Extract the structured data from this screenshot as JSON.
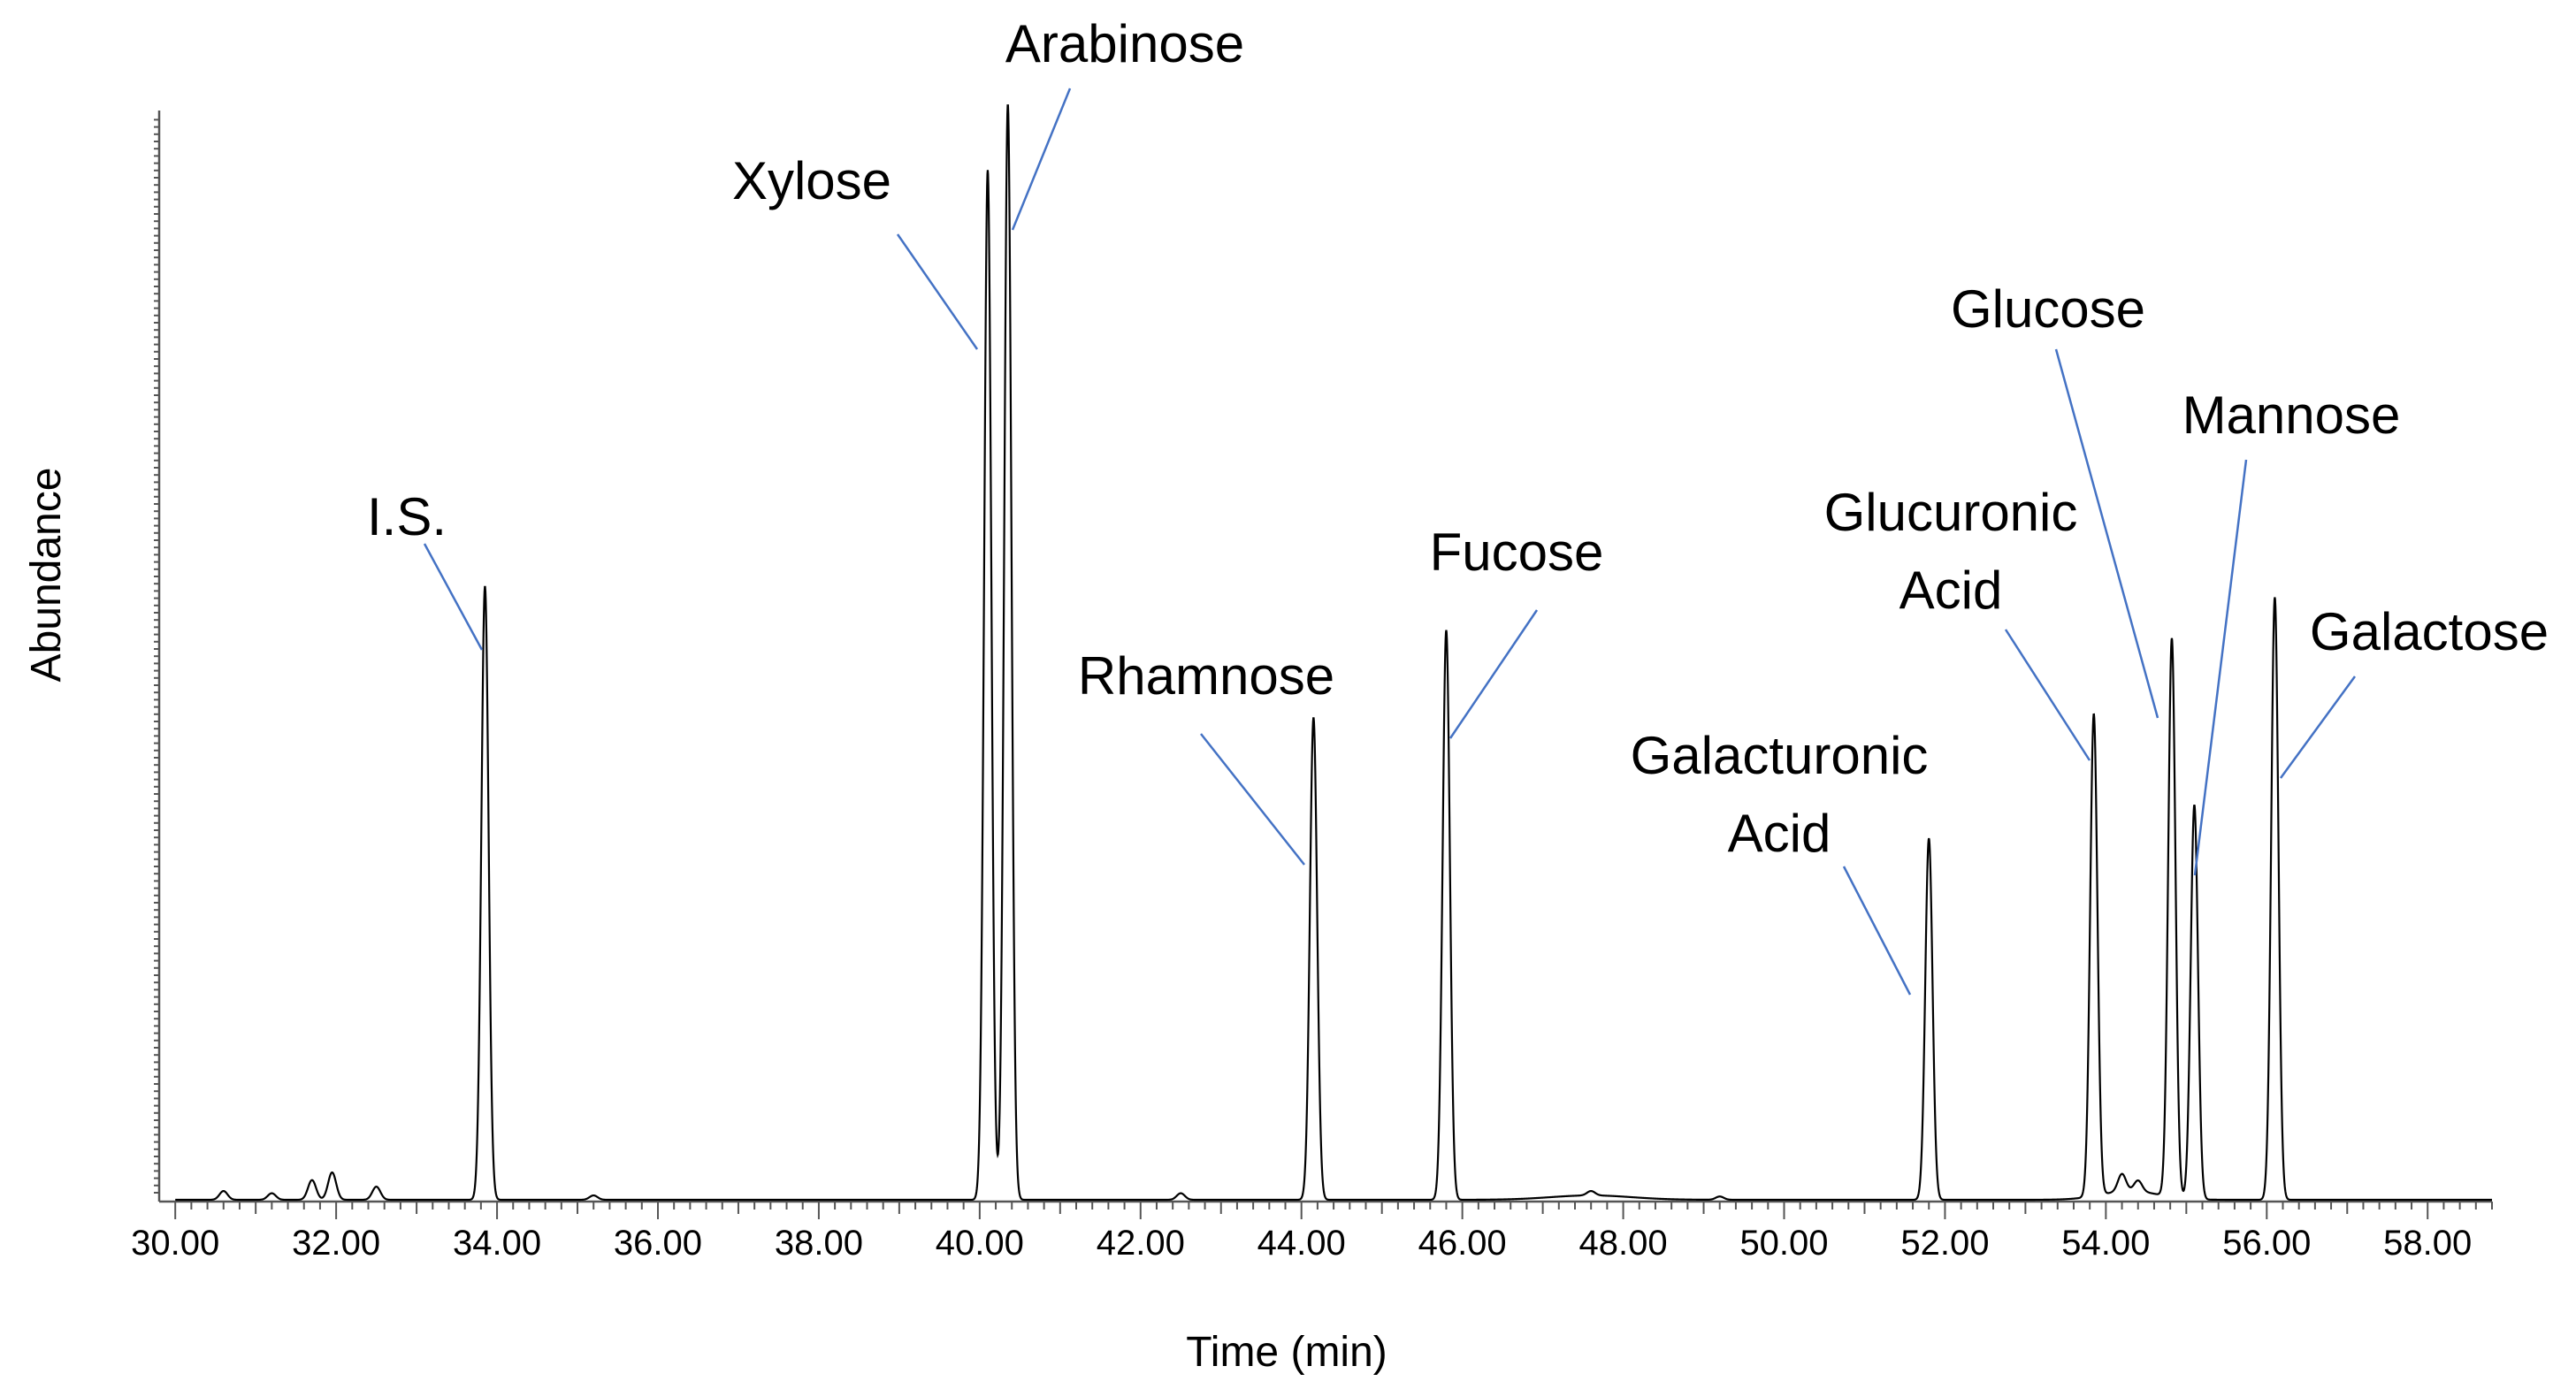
{
  "chart_data": {
    "type": "line",
    "title": "",
    "xlabel": "Time (min)",
    "ylabel": "Abundance",
    "xlim": [
      29.8,
      58.8
    ],
    "ylim": [
      0,
      1.0
    ],
    "x_ticks": [
      30,
      32,
      34,
      36,
      38,
      40,
      42,
      44,
      46,
      48,
      50,
      52,
      54,
      56,
      58
    ],
    "x_tick_labels": [
      "30.00",
      "32.00",
      "34.00",
      "36.00",
      "38.00",
      "40.00",
      "42.00",
      "44.00",
      "46.00",
      "48.00",
      "50.00",
      "52.00",
      "54.00",
      "56.00",
      "58.00"
    ],
    "y_tick_labels_shown": false,
    "grid": false,
    "legend": "none",
    "trace_color": "#000000",
    "annotation_color": "#4472c4",
    "peaks": [
      {
        "name": "I.S.",
        "lines": [
          "I.S."
        ],
        "rt": 33.85,
        "height": 0.56
      },
      {
        "name": "Xylose",
        "lines": [
          "Xylose"
        ],
        "rt": 40.1,
        "height": 0.94
      },
      {
        "name": "Arabinose",
        "lines": [
          "Arabinose"
        ],
        "rt": 40.35,
        "height": 1.0
      },
      {
        "name": "Rhamnose",
        "lines": [
          "Rhamnose"
        ],
        "rt": 44.15,
        "height": 0.44
      },
      {
        "name": "Fucose",
        "lines": [
          "Fucose"
        ],
        "rt": 45.8,
        "height": 0.52
      },
      {
        "name": "Galacturonic Acid",
        "lines": [
          "Galacturonic",
          "Acid"
        ],
        "rt": 51.8,
        "height": 0.33
      },
      {
        "name": "Glucuronic Acid",
        "lines": [
          "Glucuronic",
          "Acid"
        ],
        "rt": 53.85,
        "height": 0.44
      },
      {
        "name": "Glucose",
        "lines": [
          "Glucose"
        ],
        "rt": 54.82,
        "height": 0.51
      },
      {
        "name": "Mannose",
        "lines": [
          "Mannose"
        ],
        "rt": 55.1,
        "height": 0.36
      },
      {
        "name": "Galactose",
        "lines": [
          "Galactose"
        ],
        "rt": 56.1,
        "height": 0.55
      }
    ],
    "minor_peaks": [
      {
        "rt": 30.6,
        "height": 0.008
      },
      {
        "rt": 31.2,
        "height": 0.006
      },
      {
        "rt": 31.7,
        "height": 0.018
      },
      {
        "rt": 31.95,
        "height": 0.025
      },
      {
        "rt": 32.5,
        "height": 0.012
      },
      {
        "rt": 35.2,
        "height": 0.004
      },
      {
        "rt": 42.5,
        "height": 0.006
      },
      {
        "rt": 47.6,
        "height": 0.004
      },
      {
        "rt": 49.2,
        "height": 0.003
      },
      {
        "rt": 54.2,
        "height": 0.016
      },
      {
        "rt": 54.4,
        "height": 0.01
      }
    ]
  }
}
